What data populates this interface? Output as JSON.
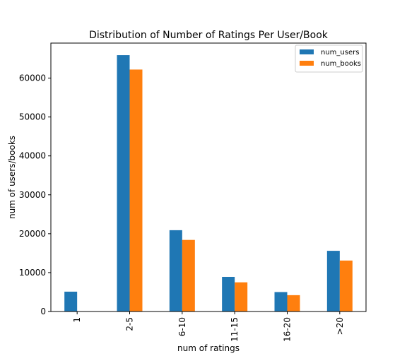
{
  "chart_data": {
    "type": "bar",
    "title": "Distribution of Number of Ratings Per User/Book",
    "xlabel": "num of ratings",
    "ylabel": "num of users/books",
    "categories": [
      "1",
      "2-5",
      "6-10",
      "11-15",
      "16-20",
      ">20"
    ],
    "series": [
      {
        "name": "num_users",
        "color": "#1f77b4",
        "values": [
          5100,
          65900,
          20900,
          8900,
          5000,
          15600
        ]
      },
      {
        "name": "num_books",
        "color": "#ff7f0e",
        "values": [
          0,
          62200,
          18400,
          7500,
          4200,
          13100
        ]
      }
    ],
    "ylim": [
      0,
      69000
    ],
    "yticks": [
      0,
      10000,
      20000,
      30000,
      40000,
      50000,
      60000
    ],
    "legend": "top-right",
    "grid": false
  }
}
